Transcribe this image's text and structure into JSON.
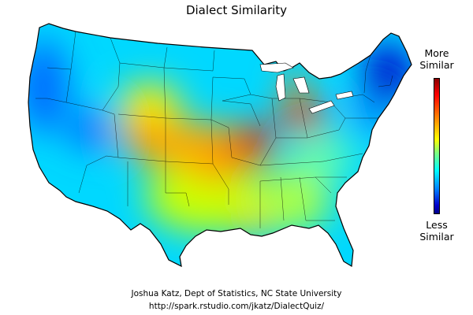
{
  "title": "Dialect Similarity",
  "legend": {
    "high_label": "More Similar",
    "low_label": "Less Similar",
    "colors": [
      "#8b0000",
      "#ff0000",
      "#ff8c00",
      "#ffff00",
      "#00ffff",
      "#0080ff",
      "#00008b"
    ]
  },
  "credit": {
    "author": "Joshua Katz, Dept of Statistics, NC State University",
    "url": "http://spark.rstudio.com/jkatz/DialectQuiz/"
  }
}
